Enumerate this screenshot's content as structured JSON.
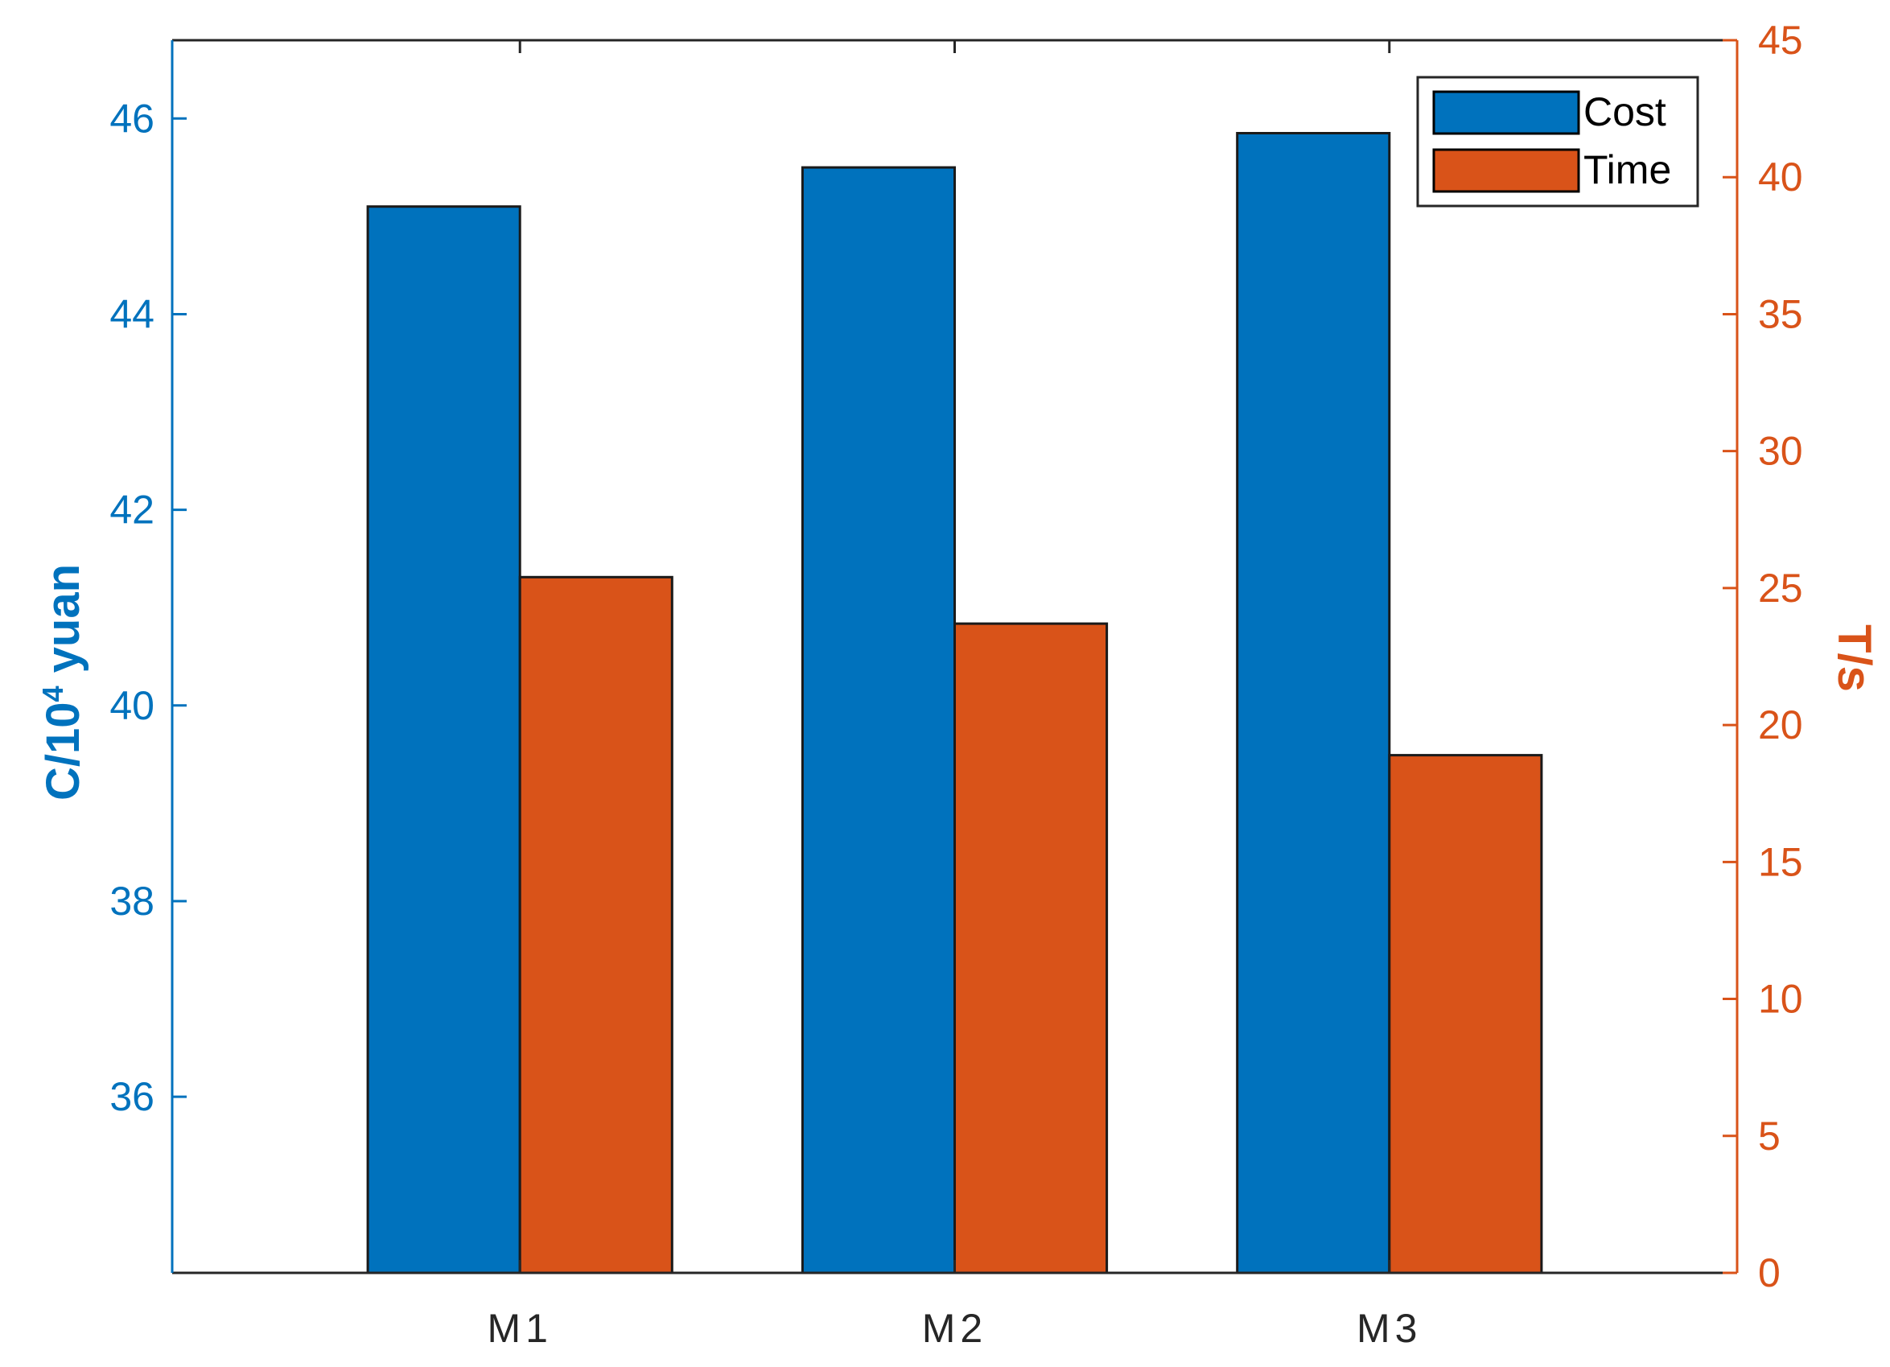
{
  "chart_data": {
    "type": "bar",
    "categories": [
      "M1",
      "M2",
      "M3"
    ],
    "series": [
      {
        "name": "Cost",
        "axis": "left",
        "values": [
          45.1,
          45.5,
          45.85
        ]
      },
      {
        "name": "Time",
        "axis": "right",
        "values": [
          25.4,
          23.7,
          18.9
        ]
      }
    ],
    "left_axis": {
      "label_prefix": "C/10",
      "label_superscript": "4",
      "label_suffix": " yuan",
      "ylim": [
        34.2,
        46.8
      ],
      "ticks": [
        36,
        38,
        40,
        42,
        44,
        46
      ],
      "tick_labels": [
        "36",
        "38",
        "40",
        "42",
        "44",
        "46"
      ]
    },
    "right_axis": {
      "label": "T/s",
      "ylim": [
        0,
        45
      ],
      "ticks": [
        0,
        5,
        10,
        15,
        20,
        25,
        30,
        35,
        40,
        45
      ],
      "tick_labels": [
        "0",
        "5",
        "10",
        "15",
        "20",
        "25",
        "30",
        "35",
        "40",
        "45"
      ]
    },
    "xlim": [
      0.2,
      3.8
    ],
    "grid": false,
    "legend_placement": "top-right"
  },
  "colors": {
    "cost": "#0072BD",
    "time": "#D95319",
    "left_axis": "#0072BD",
    "right_axis": "#D95319",
    "frame": "#262626"
  }
}
